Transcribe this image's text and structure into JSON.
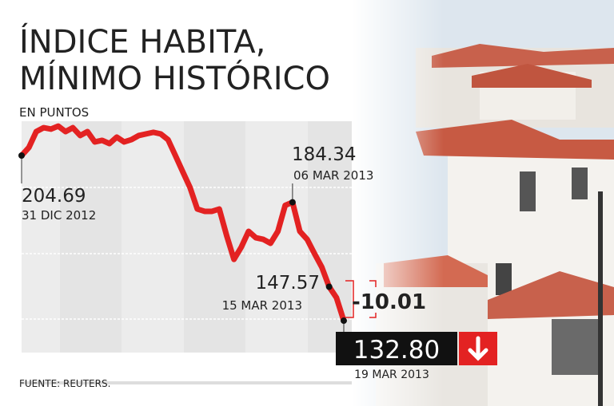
{
  "chart_data": {
    "type": "line",
    "title": [
      "ÍNDICE HABITA,",
      "MÍNIMO HISTÓRICO"
    ],
    "subtitle": "EN PUNTOS",
    "source": "FUENTE: REUTERS.",
    "color": "#e32222",
    "ylim": [
      125,
      225
    ],
    "categories": [
      "31 DIC 2012",
      null,
      null,
      null,
      null,
      null,
      null,
      null,
      null,
      null,
      null,
      null,
      null,
      null,
      null,
      null,
      null,
      null,
      null,
      null,
      null,
      null,
      null,
      null,
      null,
      null,
      null,
      null,
      null,
      null,
      null,
      null,
      null,
      null,
      null,
      null,
      null,
      "06 MAR 2013",
      null,
      null,
      null,
      null,
      "15 MAR 2013",
      null,
      "19 MAR 2013"
    ],
    "values": [
      204.69,
      208.2,
      215.1,
      216.8,
      216.2,
      217.5,
      215.1,
      216.8,
      213.4,
      215.1,
      210.6,
      211.3,
      209.9,
      212.7,
      210.6,
      211.6,
      213.4,
      214.1,
      214.8,
      214.1,
      211.6,
      204.7,
      197.7,
      190.8,
      181.4,
      180.4,
      180.4,
      181.4,
      169.9,
      159.5,
      164.8,
      171.7,
      168.9,
      168.2,
      166.5,
      171.7,
      183.0,
      184.34,
      171.7,
      168.2,
      162.0,
      156.1,
      147.57,
      142.81,
      132.8
    ],
    "value_labels": [
      "204.69",
      null,
      null,
      null,
      null,
      null,
      null,
      null,
      null,
      null,
      null,
      null,
      null,
      null,
      null,
      null,
      null,
      null,
      null,
      null,
      null,
      null,
      null,
      null,
      null,
      null,
      null,
      null,
      null,
      null,
      null,
      null,
      null,
      null,
      null,
      null,
      null,
      "184.34",
      null,
      null,
      null,
      null,
      "147.57",
      null,
      "132.80"
    ],
    "change": -10.01
  }
}
